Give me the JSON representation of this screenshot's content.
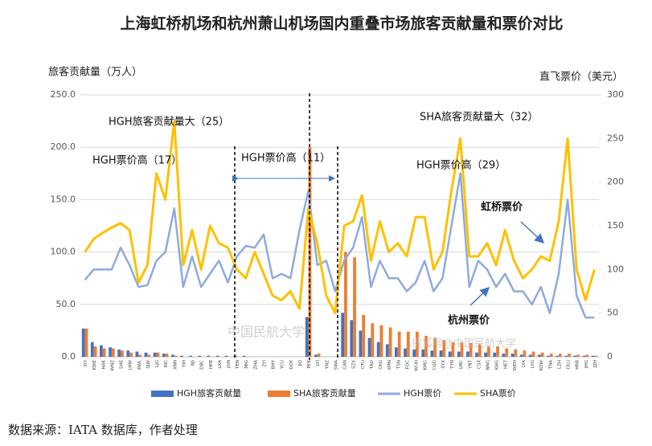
{
  "chart_data": {
    "type": "bar-line",
    "title": "上海虹桥机场和杭州萧山机场国内重叠市场旅客贡献量和票价对比",
    "y_label": "旅客贡献量（万人）",
    "y2_label": "直飞票价（美元）",
    "annotations": [
      "HGH旅客贡献量大（25）",
      "HGH票价高（17）",
      "HGH票价高（11）",
      "SHA旅客贡献量大（32）",
      "HGH票价高（29）",
      "虹桥票价",
      "杭州票价"
    ],
    "watermarks": [
      "中国民航大学",
      "搜狐号@中国民航大学"
    ],
    "source": "数据来源：IATA 数据库，作者处理",
    "categories": [
      "XIY",
      "KWE",
      "HAK",
      "WNZ",
      "SHE",
      "LHW",
      "KWL",
      "SJW",
      "LJG",
      "INC",
      "XNN",
      "YIH",
      "BJI",
      "DBC",
      "HPB",
      "LXA",
      "JGN",
      "TEN",
      "MIG",
      "ZHA",
      "ZYI",
      "BHY",
      "YCU",
      "DOY",
      "JIQ",
      "PEK",
      "LYI",
      "YNZ",
      "SWA",
      "CAN",
      "SZX",
      "CTU",
      "TAO",
      "CKG",
      "XMN",
      "TSN",
      "FOC",
      "WUH",
      "KMG",
      "CGO",
      "SYX",
      "TYN",
      "URC",
      "YNT",
      "CSX",
      "NNG",
      "KHG",
      "HET",
      "WEH",
      "LYA",
      "LYG",
      "KOW",
      "TNA",
      "LZH",
      "DLU",
      "HRB",
      "JHG",
      "JZH"
    ],
    "series": [
      {
        "name": "HGH旅客贡献量",
        "color": "#4472c4",
        "kind": "bar",
        "axis": "y",
        "values": [
          27,
          14,
          11,
          9,
          7,
          6,
          5,
          4,
          4,
          3,
          2,
          1,
          1,
          1,
          1,
          1,
          1,
          1,
          1,
          0,
          0,
          0,
          0,
          0,
          0,
          38,
          2,
          0,
          0,
          42,
          35,
          25,
          18,
          14,
          12,
          9,
          8,
          7,
          7,
          6,
          6,
          5,
          5,
          5,
          4,
          4,
          4,
          3,
          3,
          2,
          2,
          2,
          1,
          1,
          1,
          1,
          1,
          1
        ]
      },
      {
        "name": "SHA旅客贡献量",
        "color": "#ed7d31",
        "kind": "bar",
        "axis": "y",
        "values": [
          27,
          10,
          8,
          8,
          6,
          4,
          2,
          2,
          4,
          3,
          1,
          0,
          0,
          0,
          0,
          0,
          0,
          0,
          0,
          0,
          0,
          0,
          0,
          0,
          0,
          200,
          3,
          0,
          0,
          100,
          95,
          40,
          32,
          30,
          28,
          24,
          24,
          24,
          20,
          18,
          16,
          14,
          14,
          13,
          12,
          10,
          10,
          8,
          7,
          6,
          5,
          4,
          3,
          3,
          3,
          2,
          2,
          1
        ]
      },
      {
        "name": "HGH票价",
        "color": "#8faadc",
        "kind": "line",
        "axis": "y2",
        "values": [
          88,
          100,
          100,
          100,
          125,
          105,
          80,
          82,
          110,
          120,
          170,
          80,
          115,
          80,
          95,
          110,
          85,
          115,
          127,
          125,
          140,
          90,
          95,
          90,
          145,
          190,
          105,
          110,
          75,
          110,
          125,
          160,
          80,
          110,
          90,
          90,
          75,
          85,
          110,
          75,
          90,
          150,
          210,
          80,
          110,
          100,
          80,
          95,
          75,
          75,
          60,
          80,
          50,
          95,
          180,
          70,
          45,
          45
        ]
      },
      {
        "name": "SHA票价",
        "color": "#ffc000",
        "kind": "line",
        "axis": "y2",
        "values": [
          120,
          135,
          142,
          148,
          153,
          145,
          85,
          105,
          210,
          180,
          270,
          105,
          145,
          100,
          150,
          130,
          125,
          100,
          90,
          120,
          95,
          70,
          65,
          75,
          55,
          170,
          130,
          70,
          50,
          150,
          155,
          185,
          110,
          155,
          120,
          130,
          115,
          160,
          160,
          100,
          120,
          190,
          250,
          115,
          115,
          130,
          105,
          145,
          110,
          90,
          100,
          115,
          110,
          155,
          250,
          100,
          65,
          100
        ]
      }
    ],
    "ylim": [
      0,
      250
    ],
    "yticks": [
      {
        "value": 0,
        "label": "0.0"
      },
      {
        "value": 50,
        "label": "50.0"
      },
      {
        "value": 100,
        "label": "100.0"
      },
      {
        "value": 150,
        "label": "150.0"
      },
      {
        "value": 200,
        "label": "200.0"
      },
      {
        "value": 250,
        "label": "250.0"
      }
    ],
    "y2lim": [
      0,
      300
    ],
    "y2ticks": [
      0,
      50,
      100,
      150,
      200,
      250,
      300
    ],
    "grid": true,
    "legend": "bottom"
  }
}
